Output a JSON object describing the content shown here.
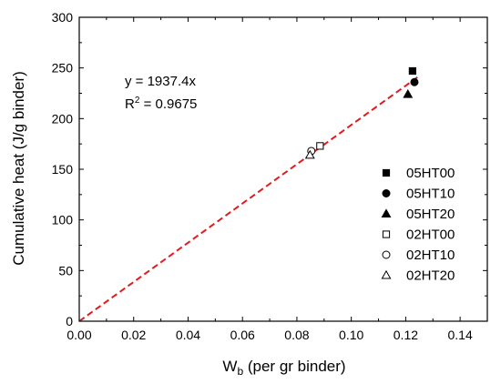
{
  "chart_data": {
    "type": "scatter",
    "xlabel": "W",
    "xlabel_sub": "b",
    "xlabel_rest": " (per gr binder)",
    "ylabel": "Cumulative heat (J/g binder)",
    "xlim": [
      0.0,
      0.15
    ],
    "ylim": [
      0,
      300
    ],
    "xticks": [
      0.0,
      0.02,
      0.04,
      0.06,
      0.08,
      0.1,
      0.12,
      0.14
    ],
    "xtick_labels": [
      "0.00",
      "0.02",
      "0.04",
      "0.06",
      "0.08",
      "0.10",
      "0.12",
      "0.14"
    ],
    "yticks": [
      0,
      50,
      100,
      150,
      200,
      250,
      300
    ],
    "ytick_labels": [
      "0",
      "50",
      "100",
      "150",
      "200",
      "250",
      "300"
    ],
    "grid": false,
    "legend_position": "right",
    "series": [
      {
        "name": "05HT00",
        "marker": "square-filled",
        "x": [
          0.1225
        ],
        "y": [
          247
        ]
      },
      {
        "name": "05HT10",
        "marker": "circle-filled",
        "x": [
          0.1232
        ],
        "y": [
          236
        ]
      },
      {
        "name": "05HT20",
        "marker": "triangle-filled",
        "x": [
          0.1208
        ],
        "y": [
          224
        ]
      },
      {
        "name": "02HT00",
        "marker": "square-open",
        "x": [
          0.0885
        ],
        "y": [
          173
        ]
      },
      {
        "name": "02HT10",
        "marker": "circle-open",
        "x": [
          0.0853
        ],
        "y": [
          168
        ]
      },
      {
        "name": "02HT20",
        "marker": "triangle-open",
        "x": [
          0.0848
        ],
        "y": [
          164
        ]
      }
    ],
    "fit": {
      "slope": 1937.4,
      "x_range": [
        0.0,
        0.1245
      ],
      "color": "#e31a1c",
      "style": "dashed",
      "equation": "y = 1937.4x",
      "r2_prefix": "R",
      "r2_sup": "2",
      "r2_value": " = 0.9675"
    }
  }
}
